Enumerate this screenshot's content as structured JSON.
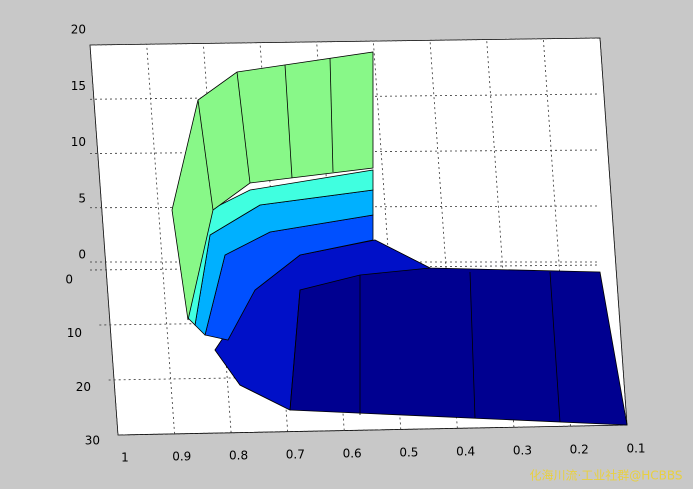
{
  "chart_data": {
    "type": "surface",
    "xlim": [
      0.1,
      1
    ],
    "xticks": [
      1,
      0.9,
      0.8,
      0.7,
      0.6,
      0.5,
      0.4,
      0.3,
      0.2,
      0.1
    ],
    "ylim": [
      0,
      30
    ],
    "yticks": [
      0,
      10,
      20,
      30
    ],
    "zlim": [
      0,
      20
    ],
    "zticks": [
      0,
      5,
      10,
      15,
      20
    ],
    "grid": true,
    "watermark": "化海川流·工业社群@HCBBS"
  }
}
